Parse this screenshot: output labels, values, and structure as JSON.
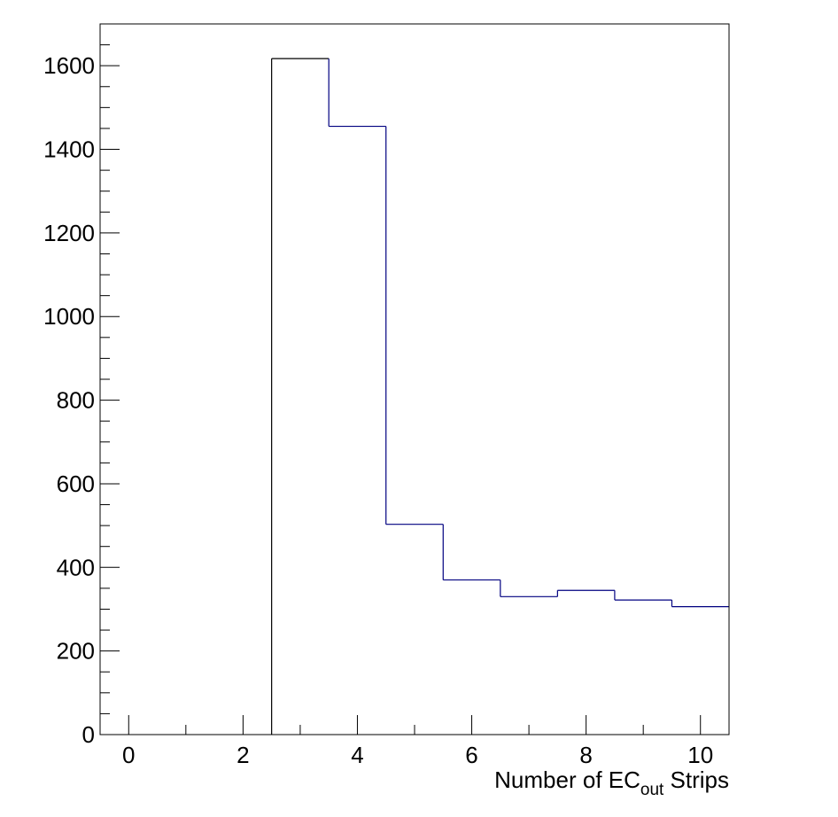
{
  "chart_data": {
    "type": "histogram",
    "title": "",
    "xlabel": {
      "pre": "Number of EC",
      "sub": "out",
      "post": " Strips"
    },
    "ylabel": "",
    "xlim": [
      -0.5,
      10.5
    ],
    "ylim": [
      0,
      1700
    ],
    "x_ticks": [
      0,
      2,
      4,
      6,
      8,
      10
    ],
    "y_ticks": [
      0,
      200,
      400,
      600,
      800,
      1000,
      1200,
      1400,
      1600
    ],
    "bins": [
      {
        "lo": -0.5,
        "hi": 0.5,
        "value": 0
      },
      {
        "lo": 0.5,
        "hi": 1.5,
        "value": 0
      },
      {
        "lo": 1.5,
        "hi": 2.5,
        "value": 0
      },
      {
        "lo": 2.5,
        "hi": 3.5,
        "value": 1617
      },
      {
        "lo": 3.5,
        "hi": 4.5,
        "value": 1455
      },
      {
        "lo": 4.5,
        "hi": 5.5,
        "value": 503
      },
      {
        "lo": 5.5,
        "hi": 6.5,
        "value": 370
      },
      {
        "lo": 6.5,
        "hi": 7.5,
        "value": 330
      },
      {
        "lo": 7.5,
        "hi": 8.5,
        "value": 345
      },
      {
        "lo": 8.5,
        "hi": 9.5,
        "value": 322
      },
      {
        "lo": 9.5,
        "hi": 10.5,
        "value": 306
      }
    ],
    "grid": false,
    "legend": "none",
    "line_color": "#000080",
    "axis_color": "#000000"
  }
}
